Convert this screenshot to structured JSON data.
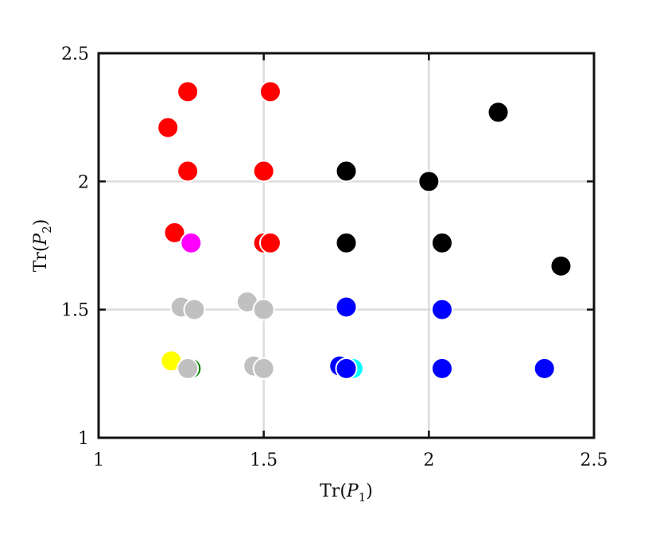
{
  "chart_data": {
    "type": "scatter",
    "title": "",
    "xlabel": {
      "base": "Tr(",
      "var": "P",
      "sub": "1",
      "close": ")"
    },
    "ylabel": {
      "base": "Tr(",
      "var": "P",
      "sub": "2",
      "close": ")"
    },
    "xlim": [
      1,
      2.5
    ],
    "ylim": [
      1,
      2.5
    ],
    "xticks": [
      "1",
      "1.5",
      "2",
      "2.5"
    ],
    "yticks": [
      "1",
      "1.5",
      "2",
      "2.5"
    ],
    "grid": true,
    "series": [
      {
        "color": "#ff0000",
        "points": [
          [
            1.27,
            2.35
          ],
          [
            1.52,
            2.35
          ],
          [
            1.21,
            2.21
          ],
          [
            1.27,
            2.04
          ],
          [
            1.5,
            2.04
          ],
          [
            1.23,
            1.8
          ],
          [
            1.5,
            1.76
          ],
          [
            1.52,
            1.76
          ]
        ]
      },
      {
        "color": "#000000",
        "points": [
          [
            2.21,
            2.27
          ],
          [
            1.75,
            2.04
          ],
          [
            2.0,
            2.0
          ],
          [
            1.75,
            1.76
          ],
          [
            2.04,
            1.76
          ],
          [
            2.4,
            1.67
          ]
        ]
      },
      {
        "color": "#ff00ff",
        "points": [
          [
            1.28,
            1.76
          ]
        ]
      },
      {
        "color": "#0000ff",
        "points": [
          [
            1.75,
            1.51
          ],
          [
            2.04,
            1.5
          ],
          [
            1.73,
            1.28
          ],
          [
            2.04,
            1.27
          ],
          [
            2.35,
            1.27
          ]
        ]
      },
      {
        "color": "#00ffff",
        "points": [
          [
            1.77,
            1.27
          ]
        ]
      },
      {
        "color": "#ffff00",
        "points": [
          [
            1.22,
            1.3
          ]
        ]
      },
      {
        "color": "#008000",
        "points": [
          [
            1.28,
            1.27
          ]
        ]
      },
      {
        "color": "#0000ff",
        "points": [
          [
            1.75,
            1.27
          ]
        ]
      },
      {
        "color": "#c0c0c0",
        "points": [
          [
            1.25,
            1.51
          ],
          [
            1.29,
            1.5
          ],
          [
            1.45,
            1.53
          ],
          [
            1.5,
            1.5
          ],
          [
            1.47,
            1.28
          ],
          [
            1.5,
            1.27
          ],
          [
            1.27,
            1.27
          ]
        ]
      }
    ]
  }
}
